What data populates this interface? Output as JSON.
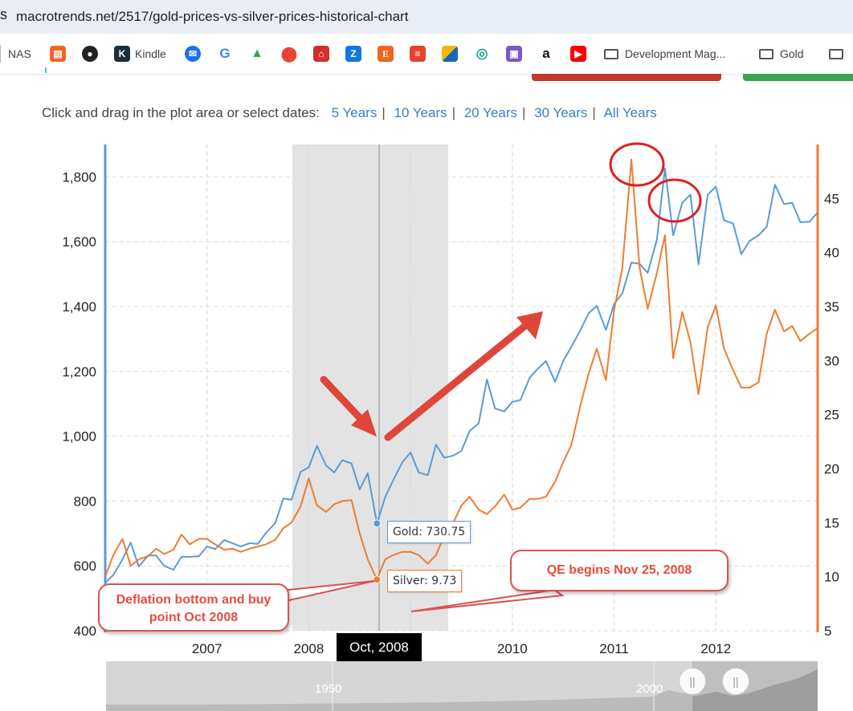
{
  "browser": {
    "edge_char": "s",
    "url": "macrotrends.net/2517/gold-prices-vs-silver-prices-historical-chart"
  },
  "bookmarks": [
    {
      "label": "NAS",
      "icon": "nas-icon"
    },
    {
      "label": "",
      "icon": "bookmark-orange-icon"
    },
    {
      "label": "",
      "icon": "github-icon"
    },
    {
      "label": "Kindle",
      "icon": "kindle-icon"
    },
    {
      "label": "",
      "icon": "mail-icon"
    },
    {
      "label": "",
      "icon": "google-icon"
    },
    {
      "label": "",
      "icon": "google-drive-icon"
    },
    {
      "label": "",
      "icon": "google-maps-icon"
    },
    {
      "label": "",
      "icon": "home-red-icon"
    },
    {
      "label": "",
      "icon": "zillow-icon"
    },
    {
      "label": "",
      "icon": "etsy-icon"
    },
    {
      "label": "",
      "icon": "todoist-icon"
    },
    {
      "label": "",
      "icon": "flag-icon"
    },
    {
      "label": "",
      "icon": "swirl-icon"
    },
    {
      "label": "",
      "icon": "bag-icon"
    },
    {
      "label": "",
      "icon": "amazon-icon"
    },
    {
      "label": "",
      "icon": "youtube-icon"
    },
    {
      "label": "Development Mag...",
      "icon": "folder-icon"
    },
    {
      "label": "Gold",
      "icon": "folder-icon"
    },
    {
      "label": "",
      "icon": "folder-icon"
    }
  ],
  "range_selector": {
    "prompt": "Click and drag in the plot area or select dates:",
    "options": [
      "5 Years",
      "10 Years",
      "20 Years",
      "30 Years",
      "All Years"
    ]
  },
  "chart_data": {
    "type": "line",
    "x_axis": {
      "ticks": [
        "2007",
        "2008",
        "Oct, 2008",
        "2010",
        "2011",
        "2012"
      ],
      "range": [
        2006.0,
        2013.0
      ]
    },
    "y_left": {
      "range": [
        400,
        1900
      ],
      "ticks": [
        "400",
        "600",
        "800",
        "1,000",
        "1,200",
        "1,400",
        "1,600",
        "1,800"
      ]
    },
    "y_right": {
      "range": [
        5,
        50
      ],
      "ticks": [
        "5",
        "10",
        "15",
        "20",
        "25",
        "30",
        "35",
        "40",
        "45"
      ]
    },
    "grid": true,
    "color_gold": "#5b9bd5",
    "color_silver": "#ed7d31",
    "series": [
      {
        "name": "Gold",
        "axis": "left",
        "x": [
          2006.0,
          2006.08,
          2006.17,
          2006.25,
          2006.33,
          2006.42,
          2006.5,
          2006.58,
          2006.67,
          2006.75,
          2006.83,
          2006.92,
          2007.0,
          2007.08,
          2007.17,
          2007.25,
          2007.33,
          2007.42,
          2007.5,
          2007.58,
          2007.67,
          2007.75,
          2007.83,
          2007.92,
          2008.0,
          2008.08,
          2008.17,
          2008.25,
          2008.33,
          2008.42,
          2008.5,
          2008.58,
          2008.67,
          2008.75,
          2008.83,
          2008.92,
          2009.0,
          2009.08,
          2009.17,
          2009.25,
          2009.33,
          2009.42,
          2009.5,
          2009.58,
          2009.67,
          2009.75,
          2009.83,
          2009.92,
          2010.0,
          2010.08,
          2010.17,
          2010.25,
          2010.33,
          2010.42,
          2010.5,
          2010.58,
          2010.67,
          2010.75,
          2010.83,
          2010.92,
          2011.0,
          2011.08,
          2011.17,
          2011.25,
          2011.33,
          2011.42,
          2011.5,
          2011.58,
          2011.67,
          2011.75,
          2011.83,
          2011.92,
          2012.0,
          2012.08,
          2012.17,
          2012.25,
          2012.33,
          2012.42,
          2012.5,
          2012.58,
          2012.67,
          2012.75,
          2012.83,
          2012.92,
          2013.0
        ],
        "values": [
          548,
          572,
          620,
          672,
          598,
          632,
          632,
          600,
          588,
          628,
          628,
          630,
          660,
          652,
          680,
          670,
          660,
          670,
          668,
          702,
          732,
          808,
          804,
          890,
          904,
          970,
          910,
          888,
          926,
          916,
          836,
          886,
          730.75,
          812,
          864,
          920,
          950,
          888,
          880,
          974,
          934,
          940,
          955,
          1016,
          1040,
          1175,
          1086,
          1076,
          1106,
          1112,
          1180,
          1208,
          1232,
          1168,
          1232,
          1276,
          1328,
          1380,
          1402,
          1328,
          1408,
          1440,
          1536,
          1532,
          1504,
          1606,
          1826,
          1620,
          1720,
          1745,
          1530,
          1745,
          1770,
          1666,
          1656,
          1562,
          1602,
          1620,
          1646,
          1776,
          1716,
          1720,
          1660,
          1662,
          1690
        ]
      },
      {
        "name": "Silver",
        "axis": "right",
        "x": [
          2006.0,
          2006.08,
          2006.17,
          2006.25,
          2006.33,
          2006.42,
          2006.5,
          2006.58,
          2006.67,
          2006.75,
          2006.83,
          2006.92,
          2007.0,
          2007.08,
          2007.17,
          2007.25,
          2007.33,
          2007.42,
          2007.5,
          2007.58,
          2007.67,
          2007.75,
          2007.83,
          2007.92,
          2008.0,
          2008.08,
          2008.17,
          2008.25,
          2008.33,
          2008.42,
          2008.5,
          2008.58,
          2008.67,
          2008.75,
          2008.83,
          2008.92,
          2009.0,
          2009.08,
          2009.17,
          2009.25,
          2009.33,
          2009.42,
          2009.5,
          2009.58,
          2009.67,
          2009.75,
          2009.83,
          2009.92,
          2010.0,
          2010.08,
          2010.17,
          2010.25,
          2010.33,
          2010.42,
          2010.5,
          2010.58,
          2010.67,
          2010.75,
          2010.83,
          2010.92,
          2011.0,
          2011.08,
          2011.17,
          2011.25,
          2011.33,
          2011.42,
          2011.5,
          2011.58,
          2011.67,
          2011.75,
          2011.83,
          2011.92,
          2012.0,
          2012.08,
          2012.17,
          2012.25,
          2012.33,
          2012.42,
          2012.5,
          2012.58,
          2012.67,
          2012.75,
          2012.83,
          2012.92,
          2013.0
        ],
        "values": [
          10.0,
          12.0,
          13.5,
          11.0,
          11.6,
          11.9,
          12.6,
          12.1,
          12.5,
          13.9,
          13.0,
          13.5,
          13.5,
          13.0,
          12.5,
          12.6,
          12.3,
          12.6,
          12.8,
          13.0,
          13.4,
          14.5,
          15.0,
          16.5,
          19.1,
          16.6,
          16.0,
          16.7,
          17.0,
          17.1,
          14.0,
          11.6,
          9.73,
          11.6,
          12.0,
          12.3,
          12.3,
          12.0,
          11.2,
          12.0,
          13.8,
          15.0,
          16.6,
          17.4,
          16.2,
          15.8,
          16.5,
          17.6,
          16.2,
          16.4,
          17.2,
          17.2,
          17.4,
          18.8,
          20.6,
          22.2,
          25.9,
          28.8,
          31.1,
          28.2,
          34.7,
          38.5,
          48.6,
          38.6,
          34.8,
          38.1,
          41.6,
          30.2,
          34.5,
          31.7,
          26.9,
          33.1,
          35.1,
          31.1,
          29.1,
          27.5,
          27.5,
          28.0,
          32.5,
          34.7,
          32.7,
          33.2,
          31.8,
          32.5,
          33.0
        ]
      }
    ],
    "crosshair": {
      "x_label": "Oct, 2008",
      "gold_label": "Gold: 730.75",
      "silver_label": "Silver: 9.73"
    },
    "annotations": [
      {
        "text": "Deflation bottom and buy point Oct 2008"
      },
      {
        "text": "QE begins Nov 25, 2008"
      }
    ],
    "navigator": {
      "labels": [
        "1950",
        "2000"
      ]
    }
  }
}
